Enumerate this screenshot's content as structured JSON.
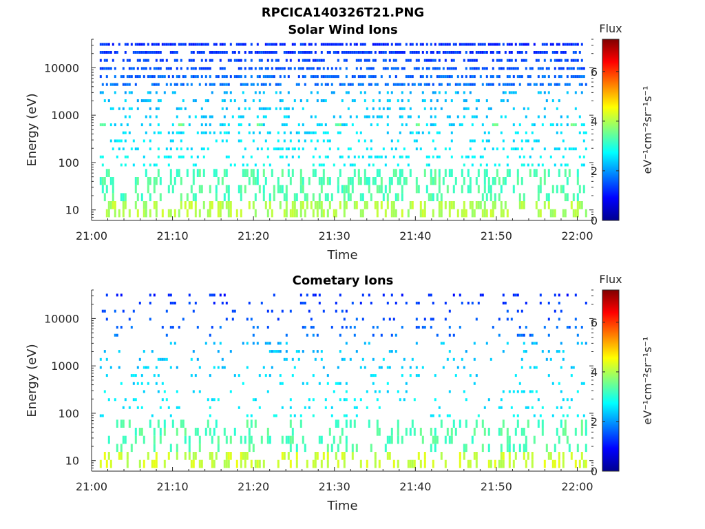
{
  "figure": {
    "title": "RPCICA140326T21.PNG"
  },
  "chart_data": [
    {
      "type": "heatmap",
      "title": "Solar Wind Ions",
      "xlabel": "Time",
      "ylabel": "Energy (eV)",
      "x_ticks": [
        "21:00",
        "21:10",
        "21:20",
        "21:30",
        "21:40",
        "21:50",
        "22:00"
      ],
      "x_range_minutes": [
        0,
        62
      ],
      "y_scale": "log",
      "y_ticks": [
        10,
        100,
        1000,
        10000
      ],
      "y_tick_labels": [
        "10",
        "100",
        "1000",
        "10000"
      ],
      "y_range": [
        6,
        40000
      ],
      "colorbar": {
        "title": "Flux",
        "label": "eV⁻¹cm⁻²sr⁻¹s⁻¹",
        "range": [
          0,
          7.3
        ],
        "ticks": [
          "0",
          "2",
          "4",
          "6"
        ],
        "colormap": "jet"
      },
      "features": "scattered pixels across all energies; log10 flux ~4 at 10 eV, ~3.3 at 30-70 eV, ~2.5-3 at 100-3000 eV with bright stripes near 600 eV, ~1-2 above 10000 eV"
    },
    {
      "type": "heatmap",
      "title": "Cometary Ions",
      "xlabel": "Time",
      "ylabel": "Energy (eV)",
      "x_ticks": [
        "21:00",
        "21:10",
        "21:20",
        "21:30",
        "21:40",
        "21:50",
        "22:00"
      ],
      "x_range_minutes": [
        0,
        62
      ],
      "y_scale": "log",
      "y_ticks": [
        10,
        100,
        1000,
        10000
      ],
      "y_tick_labels": [
        "10",
        "100",
        "1000",
        "10000"
      ],
      "y_range": [
        6,
        40000
      ],
      "colorbar": {
        "title": "Flux",
        "label": "eV⁻¹cm⁻²sr⁻¹s⁻¹",
        "range": [
          0,
          7.3
        ],
        "ticks": [
          "0",
          "2",
          "4",
          "6"
        ],
        "colormap": "jet"
      },
      "features": "sparser scattered pixels; log10 flux ~4.3 at 10 eV, ~3.3 at 30-70 eV, ~2.5 at 100-3000 eV, ~1.5-2 above 10000 eV"
    }
  ]
}
